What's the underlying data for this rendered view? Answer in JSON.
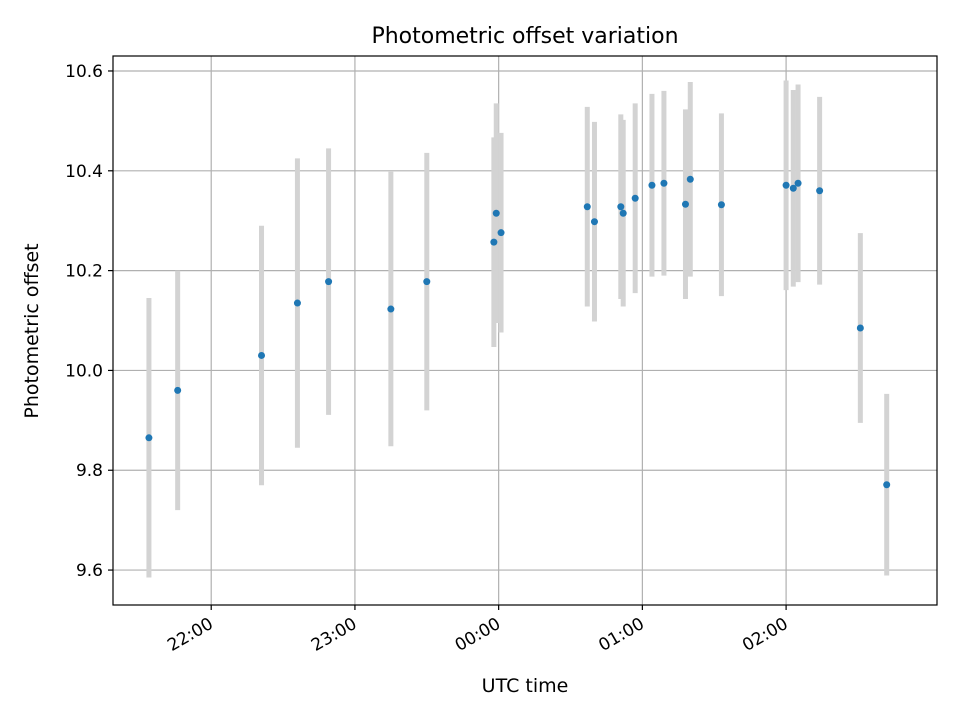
{
  "chart_data": {
    "type": "scatter",
    "title": "Photometric offset variation",
    "xlabel": "UTC time",
    "ylabel": "Photometric offset",
    "x_axis": {
      "kind": "time",
      "range": [
        "21:19",
        "03:03"
      ],
      "ticks": [
        "22:00",
        "23:00",
        "00:00",
        "01:00",
        "02:00"
      ]
    },
    "y_axis": {
      "range": [
        9.53,
        10.63
      ],
      "ticks": [
        9.6,
        9.8,
        10.0,
        10.2,
        10.4,
        10.6
      ],
      "tick_labels": [
        "9.6",
        "9.8",
        "10.0",
        "10.2",
        "10.4",
        "10.6"
      ]
    },
    "grid": true,
    "point_color": "#1f77b4",
    "errorbar_color": "#d3d3d3",
    "points": [
      {
        "t": "21:34",
        "y": 9.865,
        "err": 0.28
      },
      {
        "t": "21:46",
        "y": 9.96,
        "err": 0.24
      },
      {
        "t": "22:21",
        "y": 10.03,
        "err": 0.26
      },
      {
        "t": "22:36",
        "y": 10.135,
        "err": 0.29
      },
      {
        "t": "22:49",
        "y": 10.178,
        "err": 0.267
      },
      {
        "t": "23:15",
        "y": 10.123,
        "err": 0.275
      },
      {
        "t": "23:30",
        "y": 10.178,
        "err": 0.258
      },
      {
        "t": "23:58",
        "y": 10.257,
        "err": 0.21
      },
      {
        "t": "23:59",
        "y": 10.315,
        "err": 0.22
      },
      {
        "t": "00:01",
        "y": 10.276,
        "err": 0.2
      },
      {
        "t": "00:37",
        "y": 10.328,
        "err": 0.2
      },
      {
        "t": "00:40",
        "y": 10.298,
        "err": 0.2
      },
      {
        "t": "00:51",
        "y": 10.328,
        "err": 0.185
      },
      {
        "t": "00:52",
        "y": 10.315,
        "err": 0.187
      },
      {
        "t": "00:57",
        "y": 10.345,
        "err": 0.19
      },
      {
        "t": "01:04",
        "y": 10.371,
        "err": 0.183
      },
      {
        "t": "01:09",
        "y": 10.375,
        "err": 0.185
      },
      {
        "t": "01:18",
        "y": 10.333,
        "err": 0.19
      },
      {
        "t": "01:20",
        "y": 10.383,
        "err": 0.195
      },
      {
        "t": "01:33",
        "y": 10.332,
        "err": 0.183
      },
      {
        "t": "02:00",
        "y": 10.371,
        "err": 0.21
      },
      {
        "t": "02:03",
        "y": 10.365,
        "err": 0.197
      },
      {
        "t": "02:05",
        "y": 10.375,
        "err": 0.198
      },
      {
        "t": "02:14",
        "y": 10.36,
        "err": 0.188
      },
      {
        "t": "02:31",
        "y": 10.085,
        "err": 0.19
      },
      {
        "t": "02:42",
        "y": 9.771,
        "err": 0.182
      }
    ]
  }
}
